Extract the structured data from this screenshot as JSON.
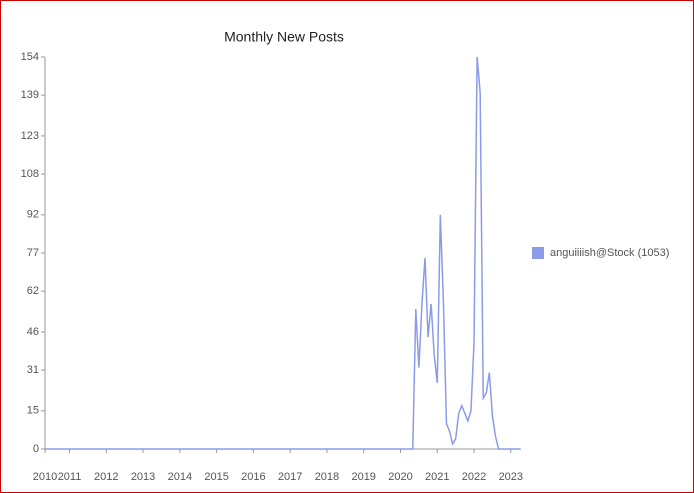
{
  "chart_data": {
    "type": "line",
    "title": "Monthly New Posts",
    "x": [
      "2010-05",
      "2010-06",
      "2010-07",
      "2010-08",
      "2010-09",
      "2010-10",
      "2010-11",
      "2010-12",
      "2011-01",
      "2011-02",
      "2011-03",
      "2011-04",
      "2011-05",
      "2011-06",
      "2011-07",
      "2011-08",
      "2011-09",
      "2011-10",
      "2011-11",
      "2011-12",
      "2012-01",
      "2012-02",
      "2012-03",
      "2012-04",
      "2012-05",
      "2012-06",
      "2012-07",
      "2012-08",
      "2012-09",
      "2012-10",
      "2012-11",
      "2012-12",
      "2013-01",
      "2013-02",
      "2013-03",
      "2013-04",
      "2013-05",
      "2013-06",
      "2013-07",
      "2013-08",
      "2013-09",
      "2013-10",
      "2013-11",
      "2013-12",
      "2014-01",
      "2014-02",
      "2014-03",
      "2014-04",
      "2014-05",
      "2014-06",
      "2014-07",
      "2014-08",
      "2014-09",
      "2014-10",
      "2014-11",
      "2014-12",
      "2015-01",
      "2015-02",
      "2015-03",
      "2015-04",
      "2015-05",
      "2015-06",
      "2015-07",
      "2015-08",
      "2015-09",
      "2015-10",
      "2015-11",
      "2015-12",
      "2016-01",
      "2016-02",
      "2016-03",
      "2016-04",
      "2016-05",
      "2016-06",
      "2016-07",
      "2016-08",
      "2016-09",
      "2016-10",
      "2016-11",
      "2016-12",
      "2017-01",
      "2017-02",
      "2017-03",
      "2017-04",
      "2017-05",
      "2017-06",
      "2017-07",
      "2017-08",
      "2017-09",
      "2017-10",
      "2017-11",
      "2017-12",
      "2018-01",
      "2018-02",
      "2018-03",
      "2018-04",
      "2018-05",
      "2018-06",
      "2018-07",
      "2018-08",
      "2018-09",
      "2018-10",
      "2018-11",
      "2018-12",
      "2019-01",
      "2019-02",
      "2019-03",
      "2019-04",
      "2019-05",
      "2019-06",
      "2019-07",
      "2019-08",
      "2019-09",
      "2019-10",
      "2019-11",
      "2019-12",
      "2020-01",
      "2020-02",
      "2020-03",
      "2020-04",
      "2020-05",
      "2020-06",
      "2020-07",
      "2020-08",
      "2020-09",
      "2020-10",
      "2020-11",
      "2020-12",
      "2021-01",
      "2021-02",
      "2021-03",
      "2021-04",
      "2021-05",
      "2021-06",
      "2021-07",
      "2021-08",
      "2021-09",
      "2021-10",
      "2021-11",
      "2021-12",
      "2022-01",
      "2022-02",
      "2022-03",
      "2022-04",
      "2022-05",
      "2022-06",
      "2022-07",
      "2022-08",
      "2022-09",
      "2022-10",
      "2022-11",
      "2022-12",
      "2023-01",
      "2023-02",
      "2023-03",
      "2023-04"
    ],
    "series": [
      {
        "name": "anguiiiish@Stock (1053)",
        "color": "#8c9be8",
        "values": [
          0,
          0,
          0,
          0,
          0,
          0,
          0,
          0,
          0,
          0,
          0,
          0,
          0,
          0,
          0,
          0,
          0,
          0,
          0,
          0,
          0,
          0,
          0,
          0,
          0,
          0,
          0,
          0,
          0,
          0,
          0,
          0,
          0,
          0,
          0,
          0,
          0,
          0,
          0,
          0,
          0,
          0,
          0,
          0,
          0,
          0,
          0,
          0,
          0,
          0,
          0,
          0,
          0,
          0,
          0,
          0,
          0,
          0,
          0,
          0,
          0,
          0,
          0,
          0,
          0,
          0,
          0,
          0,
          0,
          0,
          0,
          0,
          0,
          0,
          0,
          0,
          0,
          0,
          0,
          0,
          0,
          0,
          0,
          0,
          0,
          0,
          0,
          0,
          0,
          0,
          0,
          0,
          0,
          0,
          0,
          0,
          0,
          0,
          0,
          0,
          0,
          0,
          0,
          0,
          0,
          0,
          0,
          0,
          0,
          0,
          0,
          0,
          0,
          0,
          0,
          0,
          0,
          0,
          0,
          0,
          0,
          55,
          32,
          57,
          75,
          44,
          57,
          37,
          26,
          92,
          58,
          10,
          7,
          2,
          4,
          14,
          17,
          14,
          11,
          15,
          42,
          154,
          140,
          20,
          22,
          30,
          13,
          5,
          0,
          0,
          0,
          0,
          0,
          0,
          0,
          0
        ]
      }
    ],
    "xlim": [
      "2010-05",
      "2023-04"
    ],
    "xticks": [
      {
        "value": "2010-05",
        "label": "2010"
      },
      {
        "value": "2011-01",
        "label": "2011"
      },
      {
        "value": "2012-01",
        "label": "2012"
      },
      {
        "value": "2013-01",
        "label": "2013"
      },
      {
        "value": "2014-01",
        "label": "2014"
      },
      {
        "value": "2015-01",
        "label": "2015"
      },
      {
        "value": "2016-01",
        "label": "2016"
      },
      {
        "value": "2017-01",
        "label": "2017"
      },
      {
        "value": "2018-01",
        "label": "2018"
      },
      {
        "value": "2019-01",
        "label": "2019"
      },
      {
        "value": "2020-01",
        "label": "2020"
      },
      {
        "value": "2021-01",
        "label": "2021"
      },
      {
        "value": "2022-01",
        "label": "2022"
      },
      {
        "value": "2023-01",
        "label": "2023"
      }
    ],
    "ylim": [
      0,
      154
    ],
    "yticks": [
      0,
      15,
      31,
      46,
      62,
      77,
      92,
      108,
      123,
      139,
      154
    ],
    "legend": "right"
  }
}
